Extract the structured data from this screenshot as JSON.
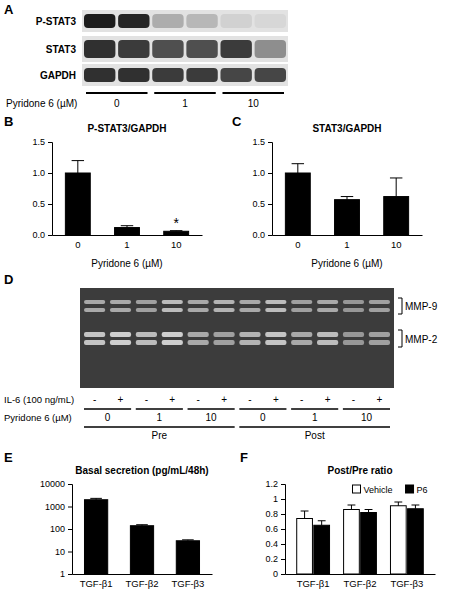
{
  "blot": {
    "panel": "A",
    "rows": [
      "P-STAT3",
      "STAT3",
      "GAPDH"
    ],
    "bands": [
      [
        0.95,
        0.9,
        0.25,
        0.2,
        0.08,
        0.05
      ],
      [
        0.85,
        0.8,
        0.7,
        0.7,
        0.8,
        0.4
      ],
      [
        0.85,
        0.85,
        0.8,
        0.8,
        0.75,
        0.75
      ]
    ],
    "lane_groups": [
      "0",
      "1",
      "10"
    ],
    "xlabel": "Pyridone 6 (µM)"
  },
  "gel": {
    "panel": "D",
    "band_labels": [
      "MMP-9",
      "MMP-2"
    ],
    "bands": [
      [
        0.6,
        0.6,
        0.55,
        0.7,
        0.6,
        0.65,
        0.6,
        0.7,
        0.55,
        0.6,
        0.5,
        0.55
      ],
      [
        0.75,
        0.8,
        0.7,
        0.8,
        0.6,
        0.55,
        0.65,
        0.75,
        0.6,
        0.7,
        0.5,
        0.55
      ]
    ],
    "il6_label": "IL-6 (100 ng/mL)",
    "il6": [
      "-",
      "+",
      "-",
      "+",
      "-",
      "+",
      "-",
      "+",
      "-",
      "+",
      "-",
      "+"
    ],
    "pyridone_label": "Pyridone 6 (µM)",
    "pyridone": [
      "0",
      "1",
      "10",
      "0",
      "1",
      "10"
    ],
    "phase": [
      "Pre",
      "Post"
    ]
  },
  "chart_data": [
    {
      "type": "bar",
      "panel": "B",
      "title": "P-STAT3/GAPDH",
      "xlabel": "Pyridone 6 (µM)",
      "categories": [
        "0",
        "1",
        "10"
      ],
      "values": [
        1.0,
        0.12,
        0.06
      ],
      "errors": [
        0.2,
        0.03,
        0.01
      ],
      "significance": [
        null,
        null,
        "*"
      ],
      "color": "#000000",
      "ylim": [
        0,
        1.5
      ],
      "yticks": [
        {
          "value": 0,
          "label": "0.0"
        },
        {
          "value": 0.5,
          "label": "0.5"
        },
        {
          "value": 1,
          "label": "1.0"
        },
        {
          "value": 1.5,
          "label": "1.5"
        }
      ]
    },
    {
      "type": "bar",
      "panel": "C",
      "title": "STAT3/GAPDH",
      "xlabel": "Pyridone 6 (µM)",
      "categories": [
        "0",
        "1",
        "10"
      ],
      "values": [
        1.0,
        0.57,
        0.62
      ],
      "errors": [
        0.15,
        0.05,
        0.3
      ],
      "color": "#000000",
      "ylim": [
        0,
        1.5
      ],
      "yticks": [
        {
          "value": 0,
          "label": "0.0"
        },
        {
          "value": 0.5,
          "label": "0.5"
        },
        {
          "value": 1,
          "label": "1.0"
        },
        {
          "value": 1.5,
          "label": "1.5"
        }
      ]
    },
    {
      "type": "bar",
      "panel": "E",
      "title": "Basal secretion (pg/mL/48h)",
      "log": "y",
      "categories": [
        "TGF-β1",
        "TGF-β2",
        "TGF-β3"
      ],
      "values": [
        2000,
        140,
        30
      ],
      "errors": [
        300,
        15,
        3
      ],
      "color": "#000000",
      "ylim": [
        1,
        10000
      ],
      "yticks": [
        1,
        10,
        100,
        1000,
        10000
      ]
    },
    {
      "type": "bar",
      "panel": "F",
      "title": "Post/Pre ratio",
      "legend": "top",
      "categories": [
        "TGF-β1",
        "TGF-β2",
        "TGF-β3"
      ],
      "series": [
        {
          "name": "Vehicle",
          "color": "#ffffff",
          "values": [
            0.74,
            0.86,
            0.91
          ],
          "errors": [
            0.1,
            0.06,
            0.05
          ]
        },
        {
          "name": "P6",
          "color": "#000000",
          "values": [
            0.65,
            0.82,
            0.87
          ],
          "errors": [
            0.06,
            0.04,
            0.05
          ]
        }
      ],
      "ylim": [
        0,
        1.2
      ],
      "yticks": [
        0,
        0.2,
        0.4,
        0.6,
        0.8,
        1,
        1.2
      ]
    }
  ]
}
